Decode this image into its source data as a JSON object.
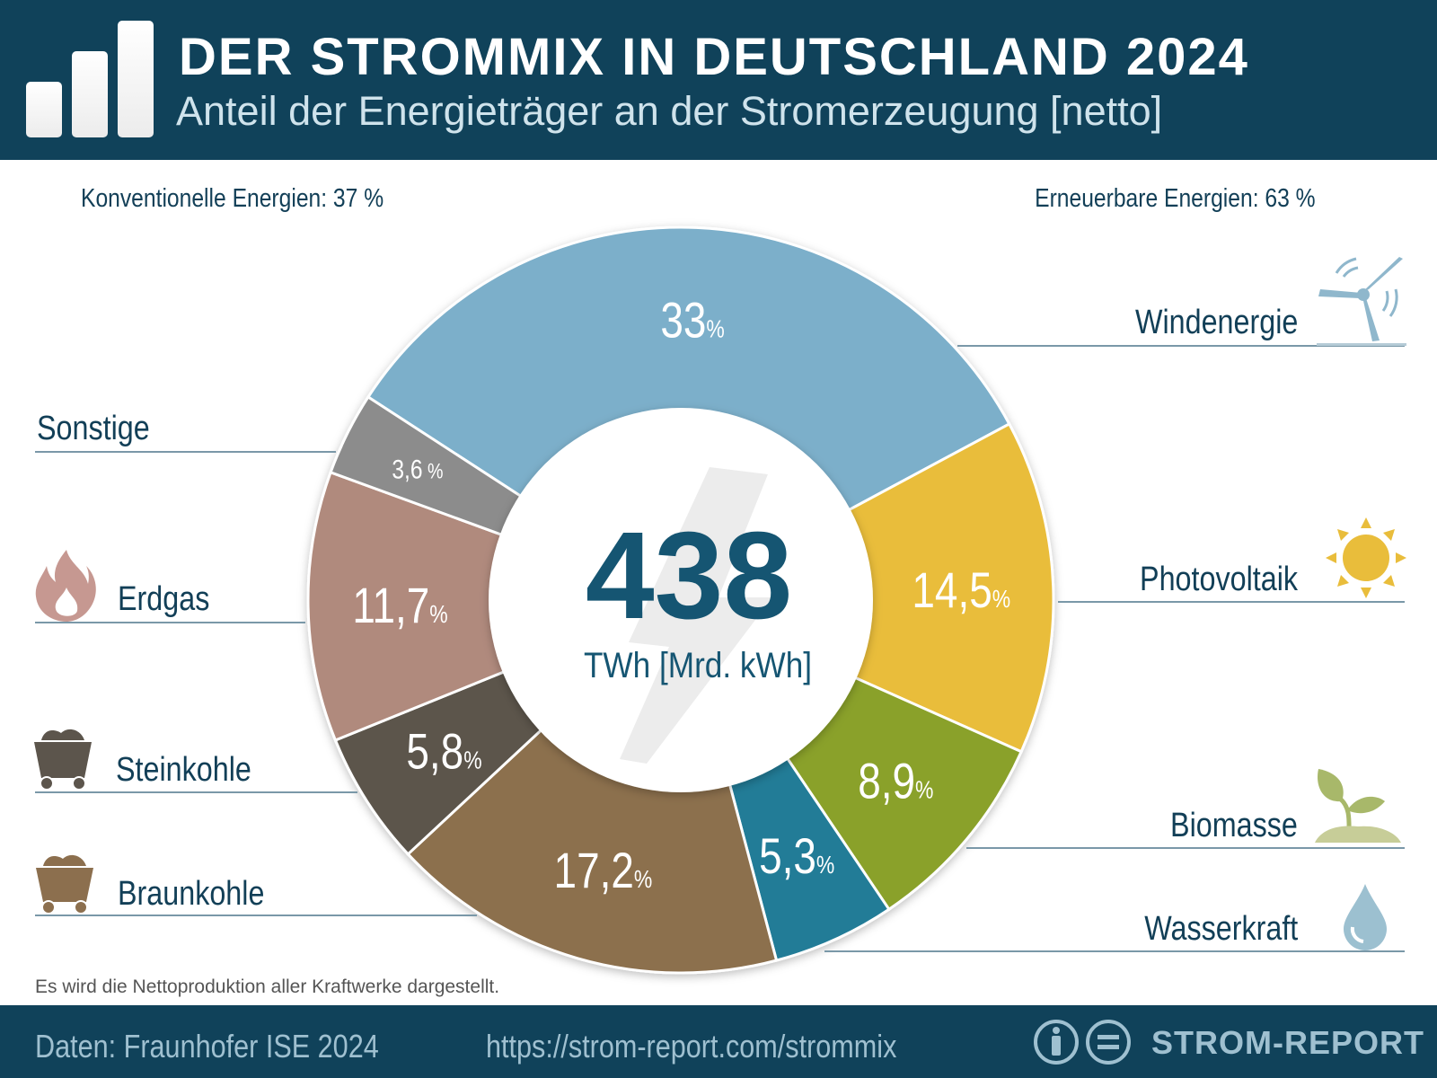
{
  "header": {
    "title": "DER STROMMIX IN DEUTSCHLAND 2024",
    "subtitle": "Anteil der Energieträger an der Stromerzeugung [netto]",
    "logo_icon": "bar-chart-icon"
  },
  "groups": {
    "conventional": "Konventionelle Energien: 37 %",
    "renewable": "Erneuerbare Energien: 63 %"
  },
  "center": {
    "value": "438",
    "unit": "TWh [Mrd. kWh]",
    "icon": "lightning-bolt-icon"
  },
  "chart_data": {
    "type": "pie",
    "variant": "donut",
    "title": "DER STROMMIX IN DEUTSCHLAND 2024",
    "subtitle": "Anteil der Energieträger an der Stromerzeugung [netto]",
    "unit": "%",
    "total": 438,
    "total_unit": "TWh [Mrd. kWh]",
    "slices": [
      {
        "name": "Windenergie",
        "value": 33,
        "label": "33",
        "color": "#7bafca",
        "icon": "wind-turbine-icon"
      },
      {
        "name": "Photovoltaik",
        "value": 14.5,
        "label": "14,5",
        "color": "#e9bd3b",
        "icon": "sun-icon"
      },
      {
        "name": "Biomasse",
        "value": 8.9,
        "label": "8,9",
        "color": "#8aa12c",
        "icon": "plant-sprout-icon"
      },
      {
        "name": "Wasserkraft",
        "value": 5.3,
        "label": "5,3",
        "color": "#217b97",
        "icon": "water-drop-icon"
      },
      {
        "name": "Braunkohle",
        "value": 17.2,
        "label": "17,2",
        "color": "#8c6f4e",
        "icon": "coal-cart-brown-icon"
      },
      {
        "name": "Steinkohle",
        "value": 5.8,
        "label": "5,8",
        "color": "#5c554c",
        "icon": "coal-cart-grey-icon"
      },
      {
        "name": "Erdgas",
        "value": 11.7,
        "label": "11,7",
        "color": "#b08a7d",
        "icon": "flame-icon"
      },
      {
        "name": "Sonstige",
        "value": 3.6,
        "label": "3,6",
        "color": "#8c8c8c",
        "icon": ""
      }
    ]
  },
  "note": "Es wird die Nettoproduktion aller Kraftwerke dargestellt.",
  "footer": {
    "source": "Daten: Fraunhofer ISE 2024",
    "url": "https://strom-report.com/strommix",
    "brand": "STROM-REPORT",
    "icons": [
      "attribution-icon",
      "no-derivatives-icon"
    ]
  }
}
